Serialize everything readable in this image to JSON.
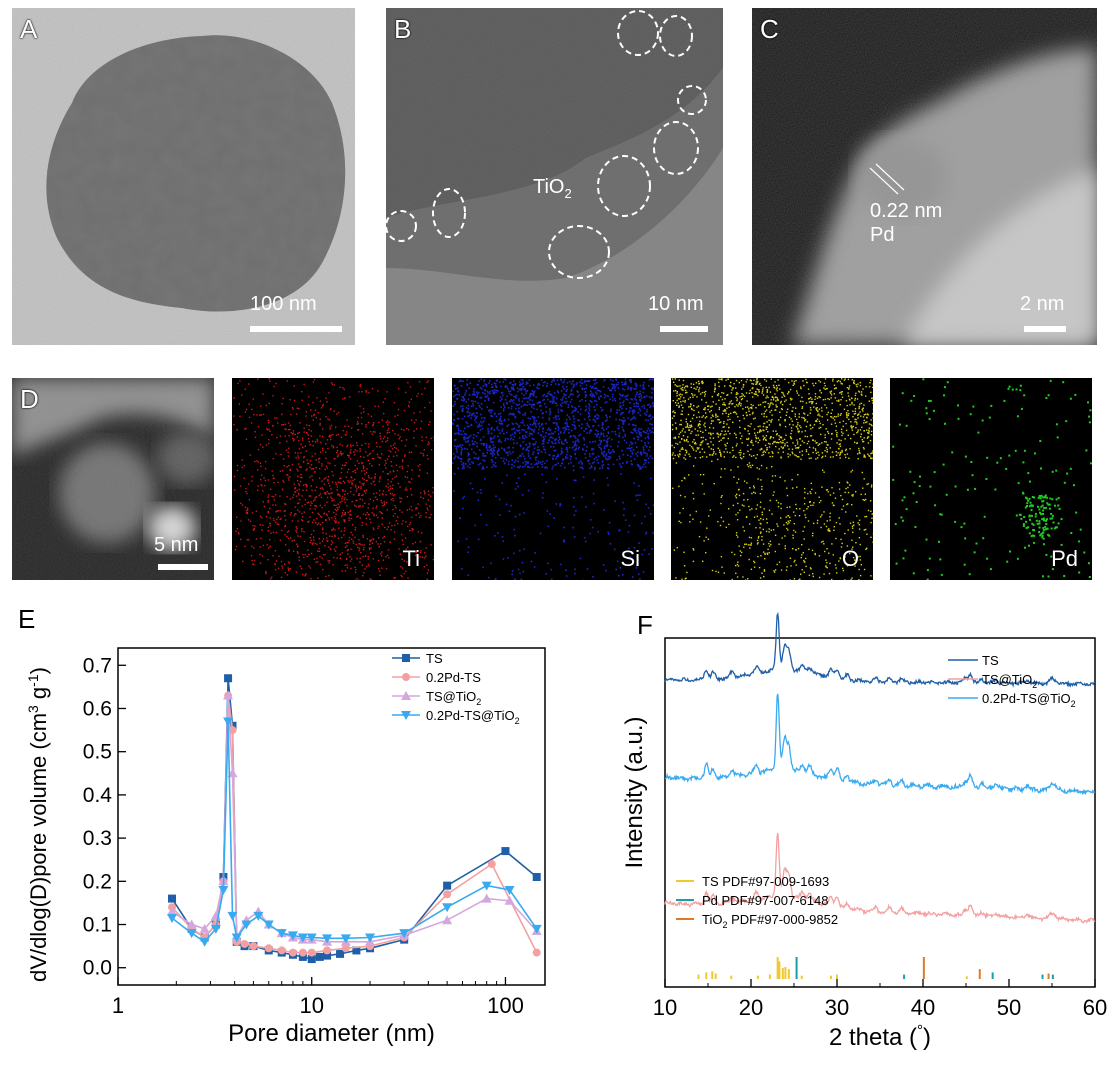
{
  "panels": {
    "A": {
      "label": "A",
      "scalebar": "100 nm"
    },
    "B": {
      "label": "B",
      "annotation_main": "TiO",
      "annotation_sub": "2",
      "scalebar": "10 nm"
    },
    "C": {
      "label": "C",
      "spacing": "0.22 nm",
      "element": "Pd",
      "scalebar": "2 nm"
    },
    "D": {
      "label": "D",
      "scalebar": "5 nm",
      "maps": [
        "Ti",
        "Si",
        "O",
        "Pd"
      ]
    },
    "E": {
      "label": "E"
    },
    "F": {
      "label": "F"
    }
  },
  "colors": {
    "ti": "#d01818",
    "si": "#1a28c8",
    "o": "#d8d018",
    "pd": "#22cc22",
    "TS": "#1f5fa8",
    "PdTS": "#f4a0a0",
    "TSTiO2": "#d4a8dc",
    "PdTSTiO2": "#3aaaf0",
    "xrd_TS": "#1f5fa8",
    "xrd_TSTiO2": "#f4a0a0",
    "xrd_PdTSTiO2": "#3aaaf0",
    "ref_TS": "#f0c830",
    "ref_Pd": "#16a0a8",
    "ref_TiO2": "#e07a2a"
  },
  "chart_data": [
    {
      "type": "line",
      "panel": "E",
      "xscale": "log",
      "xlim": [
        1,
        160
      ],
      "ylim": [
        -0.04,
        0.74
      ],
      "xticks": [
        "1",
        "10",
        "100"
      ],
      "yticks": [
        "0.0",
        "0.1",
        "0.2",
        "0.3",
        "0.4",
        "0.5",
        "0.6",
        "0.7"
      ],
      "xlabel": "Pore diameter (nm)",
      "ylabel_main": "dV/dlog(D)pore volume (cm",
      "ylabel_sup1": "3",
      "ylabel_mid": " g",
      "ylabel_sup2": "-1",
      "ylabel_end": ")",
      "legend_position": "top-right",
      "series": [
        {
          "name": "TS",
          "marker": "square",
          "x": [
            1.9,
            2.4,
            2.8,
            3.2,
            3.5,
            3.7,
            3.9,
            4.1,
            4.5,
            5,
            6,
            7,
            8,
            9,
            10,
            11,
            12,
            14,
            17,
            20,
            30,
            50,
            100,
            145
          ],
          "y": [
            0.16,
            0.09,
            0.07,
            0.1,
            0.21,
            0.67,
            0.56,
            0.06,
            0.05,
            0.05,
            0.04,
            0.035,
            0.03,
            0.025,
            0.02,
            0.025,
            0.028,
            0.032,
            0.04,
            0.045,
            0.065,
            0.19,
            0.27,
            0.21
          ]
        },
        {
          "name": "0.2Pd-TS",
          "marker": "circle",
          "x": [
            1.9,
            2.4,
            2.8,
            3.2,
            3.5,
            3.7,
            3.9,
            4.1,
            4.5,
            5,
            6,
            7,
            8,
            9,
            10,
            12,
            15,
            20,
            30,
            50,
            85,
            145
          ],
          "y": [
            0.14,
            0.09,
            0.07,
            0.1,
            0.2,
            0.63,
            0.55,
            0.06,
            0.055,
            0.05,
            0.045,
            0.04,
            0.035,
            0.035,
            0.035,
            0.04,
            0.045,
            0.05,
            0.07,
            0.17,
            0.24,
            0.035
          ]
        },
        {
          "name": "TS@TiO",
          "name_sub": "2",
          "marker": "triangle-up",
          "x": [
            1.9,
            2.4,
            2.8,
            3.2,
            3.5,
            3.7,
            3.9,
            4.1,
            4.6,
            5.3,
            6,
            7,
            8,
            9,
            10,
            12,
            15,
            20,
            30,
            50,
            80,
            105,
            145
          ],
          "y": [
            0.13,
            0.1,
            0.09,
            0.12,
            0.2,
            0.63,
            0.45,
            0.07,
            0.11,
            0.13,
            0.1,
            0.08,
            0.07,
            0.065,
            0.065,
            0.06,
            0.06,
            0.06,
            0.075,
            0.11,
            0.16,
            0.155,
            0.085
          ]
        },
        {
          "name": "0.2Pd-TS@TiO",
          "name_sub": "2",
          "marker": "triangle-down",
          "x": [
            1.9,
            2.4,
            2.8,
            3.2,
            3.5,
            3.7,
            3.9,
            4.1,
            4.6,
            5.3,
            6,
            7,
            8,
            9,
            10,
            12,
            15,
            20,
            30,
            50,
            80,
            105,
            145
          ],
          "y": [
            0.115,
            0.08,
            0.06,
            0.09,
            0.18,
            0.57,
            0.12,
            0.07,
            0.1,
            0.12,
            0.1,
            0.08,
            0.075,
            0.07,
            0.07,
            0.068,
            0.068,
            0.07,
            0.08,
            0.14,
            0.19,
            0.18,
            0.09
          ]
        }
      ]
    },
    {
      "type": "line",
      "panel": "F",
      "xlim": [
        10,
        60
      ],
      "xticks": [
        "10",
        "20",
        "30",
        "40",
        "50",
        "60"
      ],
      "xlabel": "2 theta (",
      "xlabel_deg": "°",
      "xlabel_end": ")",
      "ylabel": "Intensity (a.u.)",
      "legend_position": "top-right",
      "series": [
        {
          "name": "TS",
          "baseline": 0.15,
          "scale": 0.3
        },
        {
          "name": "TS@TiO",
          "name_sub": "2",
          "baseline": 0.455,
          "scale": 0.34
        },
        {
          "name": "0.2Pd-TS@TiO",
          "name_sub": "2",
          "baseline": 0.31,
          "scale": 0.4
        }
      ],
      "peaks": [
        14.8,
        15.6,
        17.8,
        20.6,
        23.1,
        23.9,
        24.4,
        26.0,
        26.8,
        29.3,
        30.0,
        31.2,
        34.5,
        36.1,
        37.5,
        44.9,
        45.5,
        46.8,
        48.5,
        52.1,
        54.9,
        55.3
      ],
      "peak_heights": [
        0.18,
        0.12,
        0.1,
        0.1,
        1.0,
        0.4,
        0.32,
        0.1,
        0.1,
        0.12,
        0.16,
        0.08,
        0.06,
        0.07,
        0.06,
        0.08,
        0.16,
        0.07,
        0.06,
        0.05,
        0.07,
        0.06
      ],
      "references": [
        {
          "name": "TS PDF#97-009-1693",
          "lines": [
            13.9,
            14.8,
            15.5,
            15.9,
            17.7,
            20.8,
            22.2,
            23.1,
            23.3,
            23.7,
            24.0,
            24.4,
            25.9,
            29.3,
            30.0,
            45.1
          ],
          "heights": [
            0.2,
            0.3,
            0.35,
            0.25,
            0.15,
            0.15,
            0.2,
            1.0,
            0.8,
            0.5,
            0.55,
            0.45,
            0.15,
            0.15,
            0.2,
            0.12
          ]
        },
        {
          "name": "Pd PDF#97-007-6148",
          "lines": [
            25.3,
            37.8,
            48.1,
            53.9,
            55.1
          ],
          "heights": [
            1.0,
            0.2,
            0.3,
            0.2,
            0.2
          ]
        },
        {
          "name": "TiO",
          "name_sub": "2",
          "name_end": " PDF#97-000-9852",
          "lines": [
            40.1,
            46.6,
            54.6
          ],
          "heights": [
            1.0,
            0.45,
            0.25
          ]
        }
      ]
    }
  ]
}
